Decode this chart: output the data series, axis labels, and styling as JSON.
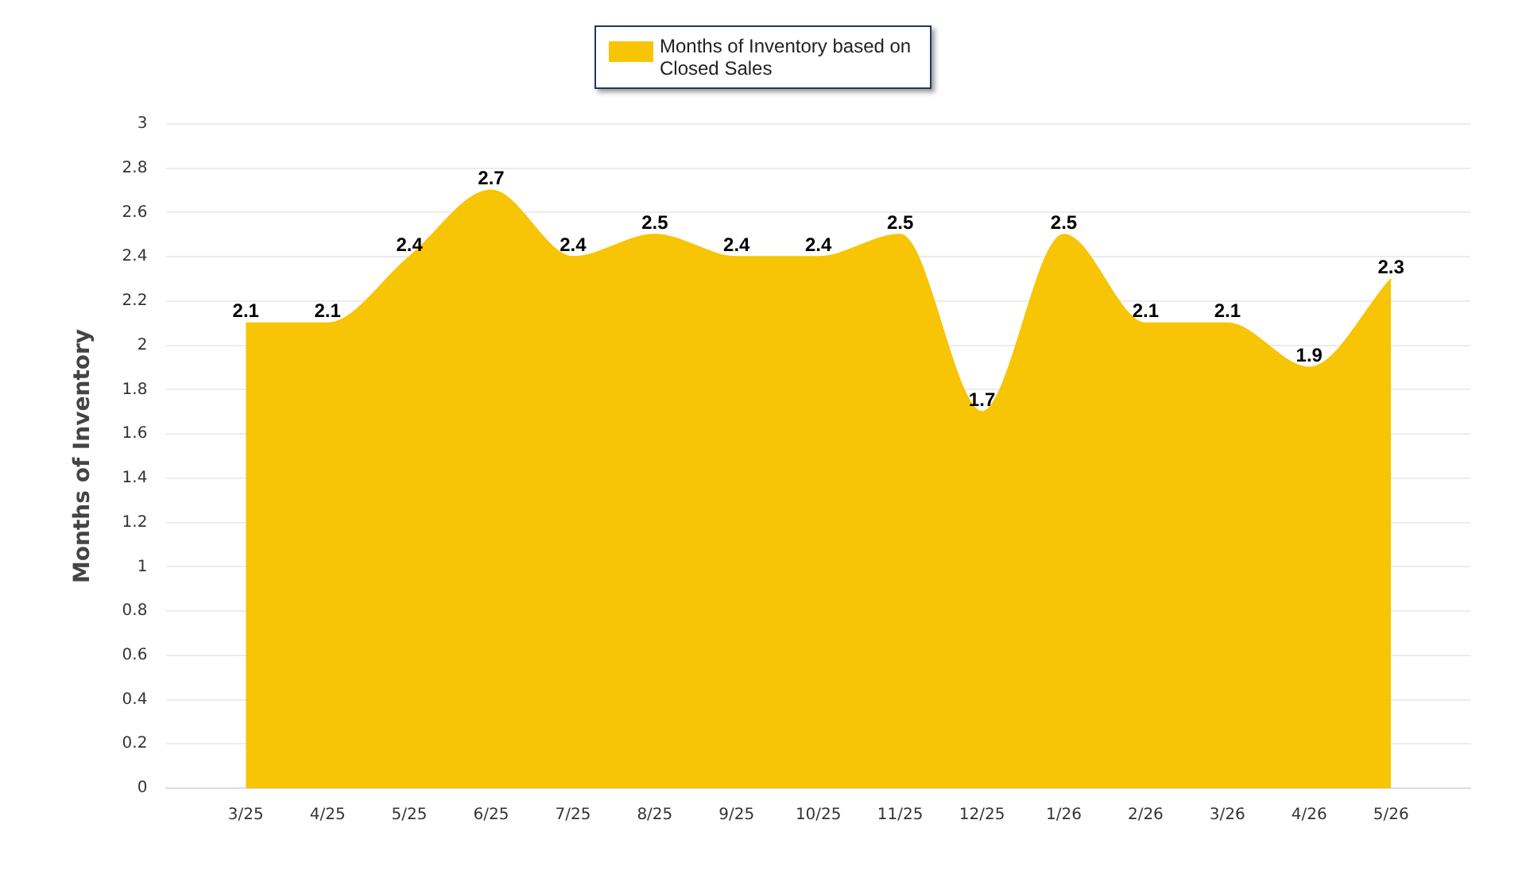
{
  "chart_data": {
    "type": "area",
    "ylabel": "Months of Inventory",
    "categories": [
      "3/25",
      "4/25",
      "5/25",
      "6/25",
      "7/25",
      "8/25",
      "9/25",
      "10/25",
      "11/25",
      "12/25",
      "1/26",
      "2/26",
      "3/26",
      "4/26",
      "5/26"
    ],
    "series": [
      {
        "name": "Months of Inventory based on Closed Sales",
        "color": "#f7c505",
        "values": [
          2.1,
          2.1,
          2.4,
          2.7,
          2.4,
          2.5,
          2.4,
          2.4,
          2.5,
          1.7,
          2.5,
          2.1,
          2.1,
          1.9,
          2.3
        ]
      }
    ],
    "ylim": [
      0,
      3
    ],
    "yticks": [
      0,
      0.2,
      0.4,
      0.6,
      0.8,
      1,
      1.2,
      1.4,
      1.6,
      1.8,
      2,
      2.2,
      2.4,
      2.6,
      2.8,
      3
    ],
    "grid": "y",
    "legend": "top",
    "data_labels": true
  }
}
